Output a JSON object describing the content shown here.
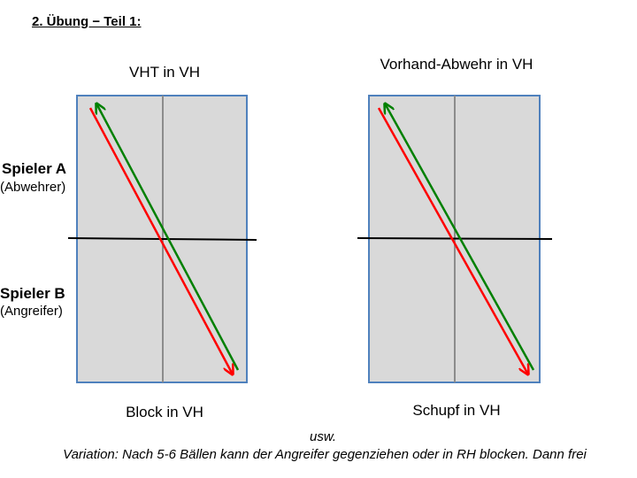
{
  "heading": "2. Übung − Teil 1:",
  "left_table": {
    "top_caption": "VHT in VH",
    "bottom_caption": "Block in VH"
  },
  "right_table": {
    "top_caption": "Vorhand-Abwehr in VH",
    "bottom_caption": "Schupf in VH"
  },
  "player_a": {
    "name": "Spieler A",
    "role": "(Abwehrer)"
  },
  "player_b": {
    "name": "Spieler B",
    "role": "(Angreifer)"
  },
  "footer": {
    "usw": "usw.",
    "variation": "Variation: Nach 5-6 Bällen kann der Angreifer gegenziehen oder in RH blocken. Dann frei"
  },
  "colors": {
    "table_fill": "#d9d9d9",
    "table_border": "#4f81bd",
    "center_line": "#8c8c8c",
    "net": "#000000",
    "arrow_red": "#ff0000",
    "arrow_green": "#008000"
  }
}
